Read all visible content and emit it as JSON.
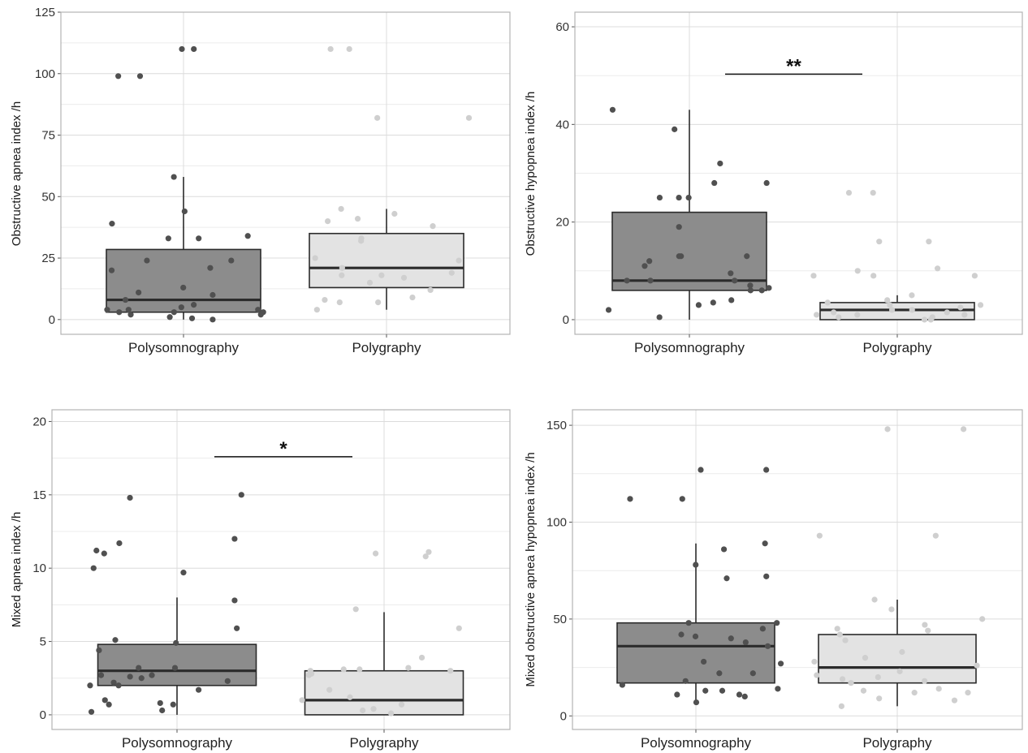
{
  "colors": {
    "polysomnography_fill": "#8c8c8c",
    "polygraphy_fill": "#e3e3e3",
    "polysomnography_points": "#505050",
    "polygraphy_points": "#cfcfcf",
    "panel_border": "#b3b3b3",
    "grid_major": "#dcdcdc",
    "grid_minor": "#ececec",
    "box_line": "#2b2b2b"
  },
  "chart_data": [
    {
      "type": "box",
      "title": "",
      "xlabel": "",
      "ylabel": "Obstructive apnea index /h",
      "categories": [
        "Polysomnography",
        "Polygraphy"
      ],
      "ylim": [
        -6,
        125
      ],
      "yticks": [
        0,
        25,
        50,
        75,
        100,
        125
      ],
      "ytick_labels": [
        "0",
        "25",
        "50",
        "75",
        "100",
        "125"
      ],
      "grid": true,
      "boxes": [
        {
          "name": "Polysomnography",
          "q1": 3,
          "median": 8,
          "q3": 28.5,
          "whisker_low": 0,
          "whisker_high": 58
        },
        {
          "name": "Polygraphy",
          "q1": 13,
          "median": 21,
          "q3": 35,
          "whisker_low": 4,
          "whisker_high": 45
        }
      ],
      "points": [
        [
          110,
          110,
          99,
          99,
          58,
          44,
          39,
          34,
          33,
          33,
          24,
          24,
          21,
          20,
          13,
          11,
          10,
          8,
          6,
          5,
          4,
          4,
          4,
          3,
          3,
          3,
          2,
          2,
          1,
          0.5,
          0
        ],
        [
          110,
          110,
          82,
          82,
          45,
          43,
          41,
          40,
          38,
          33,
          32,
          25,
          24,
          21,
          19,
          18,
          18,
          17,
          15,
          12,
          9,
          8,
          7,
          7,
          4
        ]
      ],
      "significance": ""
    },
    {
      "type": "box",
      "title": "",
      "xlabel": "",
      "ylabel": "Obstructive hypopnea index /h",
      "categories": [
        "Polysomnography",
        "Polygraphy"
      ],
      "ylim": [
        -3,
        63
      ],
      "yticks": [
        0,
        20,
        40,
        60
      ],
      "ytick_labels": [
        "0",
        "20",
        "40",
        "60"
      ],
      "grid": true,
      "boxes": [
        {
          "name": "Polysomnography",
          "q1": 6,
          "median": 8,
          "q3": 22,
          "whisker_low": 0,
          "whisker_high": 43
        },
        {
          "name": "Polygraphy",
          "q1": 0,
          "median": 2,
          "q3": 3.5,
          "whisker_low": 0,
          "whisker_high": 5
        }
      ],
      "points": [
        [
          43,
          39,
          32,
          28,
          28,
          25,
          25,
          25,
          19,
          13,
          13,
          13,
          12,
          11,
          9.5,
          8,
          8,
          8,
          7,
          6.5,
          6,
          6,
          4,
          3.5,
          3,
          2,
          0.5
        ],
        [
          26,
          26,
          16,
          16,
          10.5,
          10,
          9,
          9,
          9,
          5,
          4,
          3.5,
          3,
          3,
          2.5,
          2,
          2,
          1.5,
          1.5,
          1,
          1,
          1,
          0.5,
          0.5,
          0,
          0
        ]
      ],
      "significance": "**"
    },
    {
      "type": "box",
      "title": "",
      "xlabel": "",
      "ylabel": "Mixed apnea index /h",
      "categories": [
        "Polysomnography",
        "Polygraphy"
      ],
      "ylim": [
        -1,
        20.8
      ],
      "yticks": [
        0,
        5,
        10,
        15,
        20
      ],
      "ytick_labels": [
        "0",
        "5",
        "10",
        "15",
        "20"
      ],
      "grid": true,
      "boxes": [
        {
          "name": "Polysomnography",
          "q1": 2,
          "median": 3,
          "q3": 4.8,
          "whisker_low": 0,
          "whisker_high": 8
        },
        {
          "name": "Polygraphy",
          "q1": 0,
          "median": 1,
          "q3": 3,
          "whisker_low": 0,
          "whisker_high": 7
        }
      ],
      "points": [
        [
          15,
          14.8,
          12,
          11.7,
          11.2,
          11,
          10,
          9.7,
          7.8,
          5.9,
          5.1,
          4.9,
          4.4,
          3.2,
          3.2,
          2.7,
          2.7,
          2.6,
          2.5,
          2.3,
          2.2,
          2,
          2,
          1.7,
          1,
          0.8,
          0.7,
          0.7,
          0.3,
          0.2
        ],
        [
          11.1,
          11,
          10.8,
          7.2,
          5.9,
          3.9,
          3.2,
          3.1,
          3.1,
          3,
          3,
          2.8,
          2.7,
          1.7,
          1.2,
          1,
          0.7,
          0.4,
          0.3,
          0.1
        ]
      ],
      "significance": "*"
    },
    {
      "type": "box",
      "title": "",
      "xlabel": "",
      "ylabel": "Mixed obstructive apnea hypopnea index /h",
      "categories": [
        "Polysomnography",
        "Polygraphy"
      ],
      "ylim": [
        -7,
        158
      ],
      "yticks": [
        0,
        50,
        100,
        150
      ],
      "ytick_labels": [
        "0",
        "50",
        "100",
        "150"
      ],
      "grid": true,
      "boxes": [
        {
          "name": "Polysomnography",
          "q1": 17,
          "median": 36,
          "q3": 48,
          "whisker_low": 7,
          "whisker_high": 89
        },
        {
          "name": "Polygraphy",
          "q1": 17,
          "median": 25,
          "q3": 42,
          "whisker_low": 5,
          "whisker_high": 60
        }
      ],
      "points": [
        [
          127,
          127,
          112,
          112,
          89,
          86,
          78,
          72,
          71,
          48,
          48,
          45,
          42,
          41,
          40,
          38,
          36,
          28,
          27,
          22,
          22,
          18,
          16,
          14,
          13,
          13,
          11,
          11,
          10,
          7
        ],
        [
          148,
          148,
          93,
          93,
          60,
          55,
          50,
          47,
          45,
          44,
          42,
          39,
          33,
          30,
          28,
          26,
          23,
          21,
          20,
          19,
          18,
          17,
          14,
          13,
          12,
          12,
          9,
          8,
          5
        ]
      ],
      "significance": ""
    }
  ]
}
